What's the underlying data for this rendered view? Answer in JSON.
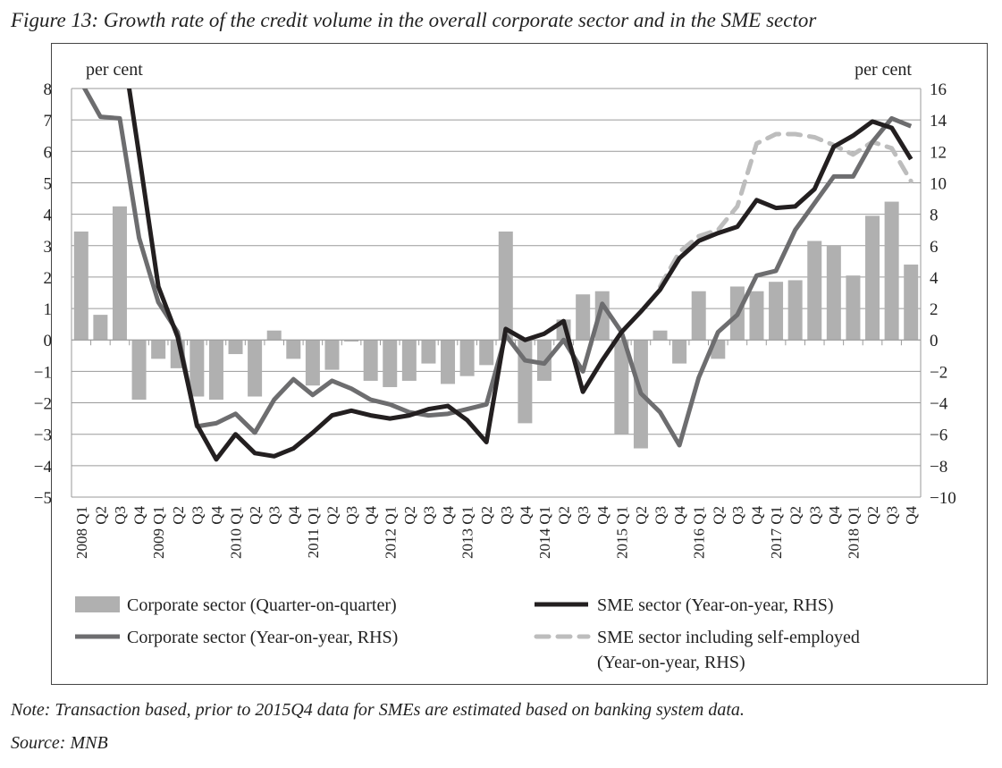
{
  "title": "Figure 13: Growth rate of the credit volume in the overall corporate sector and in the SME sector",
  "note": "Note: Transaction based, prior to 2015Q4 data for SMEs are estimated based on banking system data.",
  "source": "Source: MNB",
  "chart_data": {
    "type": "bar+line",
    "ylabel_left": "per cent",
    "ylabel_right": "per cent",
    "ylim_left": [
      -5,
      8
    ],
    "ylim_right": [
      -10,
      16
    ],
    "yticks_left": [
      8,
      7,
      6,
      5,
      4,
      3,
      2,
      1,
      0,
      -1,
      -2,
      -3,
      -4,
      -5
    ],
    "yticks_right": [
      16,
      14,
      12,
      10,
      8,
      6,
      4,
      2,
      0,
      -2,
      -4,
      -6,
      -8,
      -10
    ],
    "grid": true,
    "years": [
      "2008",
      "2009",
      "2010",
      "2011",
      "2012",
      "2013",
      "2014",
      "2015",
      "2016",
      "2017",
      "2018"
    ],
    "quarters": [
      "Q1",
      "Q2",
      "Q3",
      "Q4"
    ],
    "colors": {
      "bar": "#b0b0b0",
      "corp_yoy": "#6d6d6f",
      "sme": "#231f20",
      "sme_self": "#bdbdbd"
    },
    "series": [
      {
        "name": "Corporate sector (Quarter-on-quarter)",
        "type": "bar",
        "axis": "left",
        "values": [
          3.45,
          0.8,
          4.25,
          -1.9,
          -0.6,
          -0.9,
          -1.8,
          -1.9,
          -0.45,
          -1.8,
          0.3,
          -0.6,
          -1.45,
          -0.95,
          -0.05,
          -1.3,
          -1.5,
          -1.3,
          -0.75,
          -1.4,
          -1.15,
          -0.8,
          3.45,
          -2.65,
          -1.3,
          0.65,
          1.45,
          1.55,
          -3.0,
          -3.45,
          0.3,
          -0.75,
          1.55,
          -0.6,
          1.7,
          1.55,
          1.85,
          1.9,
          3.15,
          3.0,
          2.05,
          3.95,
          4.4,
          2.4
        ]
      },
      {
        "name": "Corporate sector (Year-on-year, RHS)",
        "type": "line",
        "axis": "right",
        "values": [
          16.4,
          14.2,
          14.1,
          6.5,
          2.4,
          0.5,
          -5.5,
          -5.3,
          -4.7,
          -5.9,
          -3.8,
          -2.5,
          -3.5,
          -2.6,
          -3.1,
          -3.8,
          -4.1,
          -4.6,
          -4.8,
          -4.7,
          -4.4,
          -4.1,
          0.3,
          -1.3,
          -1.5,
          0,
          -2.0,
          2.3,
          0.5,
          -3.4,
          -4.6,
          -6.7,
          -2.4,
          0.5,
          1.6,
          4.1,
          4.4,
          7.0,
          8.7,
          10.4,
          10.4,
          12.6,
          14.1,
          13.6
        ]
      },
      {
        "name": "SME sector (Year-on-year, RHS)",
        "type": "line",
        "axis": "right",
        "values": [
          null,
          null,
          20,
          11.8,
          3.4,
          0.2,
          -5.4,
          -7.6,
          -6.0,
          -7.2,
          -7.4,
          -6.9,
          -5.9,
          -4.8,
          -4.5,
          -4.8,
          -5.0,
          -4.8,
          -4.4,
          -4.2,
          -5.1,
          -6.5,
          0.7,
          0.0,
          0.4,
          1.2,
          -3.3,
          -1.3,
          0.5,
          1.8,
          3.2,
          5.2,
          6.3,
          6.8,
          7.2,
          8.9,
          8.4,
          8.5,
          9.6,
          12.3,
          13.0,
          13.9,
          13.5,
          11.5
        ]
      },
      {
        "name": "SME sector including self-employed (Year-on-year, RHS)",
        "type": "line",
        "dashed": true,
        "axis": "right",
        "values": [
          null,
          null,
          null,
          null,
          null,
          null,
          null,
          null,
          null,
          null,
          null,
          null,
          null,
          null,
          null,
          null,
          null,
          null,
          null,
          null,
          null,
          null,
          null,
          null,
          null,
          null,
          null,
          null,
          null,
          null,
          3.4,
          5.6,
          6.6,
          7.0,
          8.5,
          12.5,
          13.1,
          13.1,
          12.9,
          12.4,
          11.8,
          12.6,
          12.2,
          10.1
        ]
      }
    ],
    "legend": [
      "Corporate sector (Quarter-on-quarter)",
      "SME sector (Year-on-year, RHS)",
      "Corporate sector (Year-on-year, RHS)",
      "SME sector including self-employed",
      "(Year-on-year, RHS)"
    ],
    "legend_position": "bottom"
  }
}
